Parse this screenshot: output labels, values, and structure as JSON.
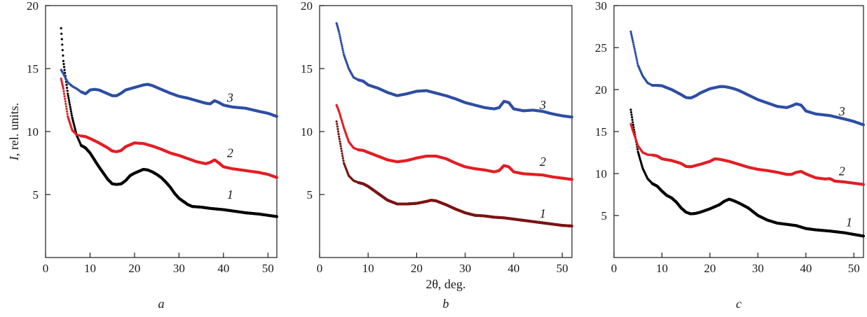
{
  "chart_data": [
    {
      "type": "scatter",
      "panel_label": "a",
      "ylabel": "I, rel. units.",
      "xlabel": "",
      "xlim": [
        0,
        52
      ],
      "ylim": [
        0,
        20
      ],
      "xticks": [
        0,
        10,
        20,
        30,
        40,
        50
      ],
      "yticks": [
        5,
        10,
        15,
        20
      ],
      "grid": false,
      "series": [
        {
          "label": "1",
          "color": "#000000",
          "label_pos": [
            41.5,
            5.0
          ],
          "x": [
            3.5,
            4,
            5,
            6,
            7,
            8,
            9,
            10,
            12,
            14,
            15,
            16,
            17,
            18,
            19,
            20,
            21,
            22,
            23,
            24,
            25,
            26,
            27,
            28,
            29,
            30,
            31,
            32,
            33,
            35,
            37,
            40,
            42,
            45,
            48,
            50,
            52
          ],
          "y": [
            18.2,
            15.6,
            13.0,
            11.1,
            9.7,
            8.9,
            8.7,
            8.3,
            7.2,
            6.2,
            5.85,
            5.8,
            5.85,
            6.1,
            6.5,
            6.7,
            6.85,
            7.0,
            6.95,
            6.8,
            6.6,
            6.35,
            6.0,
            5.6,
            5.1,
            4.7,
            4.45,
            4.2,
            4.05,
            4.0,
            3.9,
            3.8,
            3.7,
            3.55,
            3.45,
            3.35,
            3.25
          ]
        },
        {
          "label": "2",
          "color": "#e31e24",
          "label_pos": [
            41.5,
            8.3
          ],
          "x": [
            3.5,
            4,
            5,
            6,
            7,
            8,
            9,
            10,
            12,
            14,
            15,
            16,
            17,
            18,
            20,
            22,
            24,
            26,
            28,
            30,
            32,
            34,
            36,
            37,
            38,
            39,
            40,
            42,
            45,
            48,
            50,
            52
          ],
          "y": [
            14.2,
            13.4,
            11.2,
            10.1,
            9.75,
            9.65,
            9.6,
            9.45,
            9.1,
            8.7,
            8.45,
            8.4,
            8.5,
            8.8,
            9.1,
            9.05,
            8.85,
            8.6,
            8.3,
            8.1,
            7.85,
            7.6,
            7.45,
            7.55,
            7.75,
            7.5,
            7.2,
            7.05,
            6.9,
            6.75,
            6.6,
            6.35
          ]
        },
        {
          "label": "3",
          "color": "#2e4fa3",
          "label_pos": [
            41.5,
            12.7
          ],
          "x": [
            3.5,
            4,
            5,
            6,
            7,
            8,
            9,
            10,
            11,
            12,
            14,
            15,
            16,
            17,
            18,
            20,
            22,
            23,
            24,
            26,
            28,
            30,
            32,
            34,
            36,
            37,
            38,
            39,
            40,
            42,
            45,
            48,
            50,
            52
          ],
          "y": [
            14.9,
            14.6,
            13.9,
            13.6,
            13.4,
            13.15,
            13.0,
            13.3,
            13.35,
            13.3,
            13.0,
            12.85,
            12.85,
            13.05,
            13.3,
            13.5,
            13.7,
            13.75,
            13.65,
            13.35,
            13.05,
            12.8,
            12.65,
            12.45,
            12.25,
            12.2,
            12.45,
            12.3,
            12.1,
            11.95,
            11.85,
            11.6,
            11.45,
            11.2
          ]
        }
      ]
    },
    {
      "type": "scatter",
      "panel_label": "b",
      "ylabel": "",
      "xlabel": "2θ, deg.",
      "xlim": [
        0,
        52
      ],
      "ylim": [
        0,
        20
      ],
      "xticks": [
        0,
        10,
        20,
        30,
        40,
        50
      ],
      "yticks": [
        5,
        10,
        15,
        20
      ],
      "grid": false,
      "series": [
        {
          "label": "1",
          "color": "#7a1414",
          "label_pos": [
            46.0,
            3.5
          ],
          "x": [
            3.5,
            4,
            5,
            6,
            7,
            8,
            9,
            10,
            12,
            14,
            16,
            18,
            20,
            22,
            23,
            24,
            26,
            28,
            30,
            32,
            34,
            36,
            38,
            40,
            42,
            44,
            46,
            48,
            50,
            52
          ],
          "y": [
            10.8,
            9.6,
            7.5,
            6.5,
            6.1,
            5.95,
            5.85,
            5.65,
            5.1,
            4.55,
            4.25,
            4.25,
            4.3,
            4.45,
            4.55,
            4.5,
            4.2,
            3.85,
            3.55,
            3.35,
            3.3,
            3.2,
            3.15,
            3.05,
            2.95,
            2.85,
            2.75,
            2.65,
            2.55,
            2.5
          ]
        },
        {
          "label": "2",
          "color": "#e31e24",
          "label_pos": [
            46.0,
            7.6
          ],
          "x": [
            3.5,
            4,
            5,
            6,
            7,
            8,
            9,
            10,
            12,
            14,
            16,
            18,
            20,
            22,
            24,
            26,
            28,
            30,
            32,
            34,
            36,
            37,
            38,
            39,
            40,
            42,
            44,
            46,
            48,
            50,
            52
          ],
          "y": [
            12.1,
            11.6,
            10.3,
            9.2,
            8.7,
            8.55,
            8.5,
            8.35,
            8.05,
            7.75,
            7.6,
            7.7,
            7.9,
            8.05,
            8.05,
            7.85,
            7.5,
            7.2,
            7.05,
            6.95,
            6.8,
            6.9,
            7.3,
            7.2,
            6.8,
            6.65,
            6.6,
            6.55,
            6.4,
            6.3,
            6.2
          ]
        },
        {
          "label": "3",
          "color": "#2e4fa3",
          "label_pos": [
            46.0,
            12.1
          ],
          "x": [
            3.5,
            4,
            5,
            6,
            7,
            8,
            9,
            10,
            12,
            14,
            16,
            18,
            20,
            22,
            24,
            26,
            28,
            30,
            32,
            34,
            36,
            37,
            38,
            39,
            40,
            42,
            44,
            46,
            48,
            50,
            52
          ],
          "y": [
            18.6,
            17.9,
            16.1,
            15.0,
            14.3,
            14.1,
            14.0,
            13.7,
            13.45,
            13.1,
            12.85,
            13.0,
            13.2,
            13.25,
            13.05,
            12.85,
            12.6,
            12.3,
            12.1,
            11.9,
            11.8,
            11.9,
            12.4,
            12.3,
            11.8,
            11.65,
            11.7,
            11.6,
            11.4,
            11.25,
            11.15
          ]
        }
      ]
    },
    {
      "type": "scatter",
      "panel_label": "c",
      "ylabel": "",
      "xlabel": "",
      "xlim": [
        0,
        52
      ],
      "ylim": [
        0,
        30
      ],
      "xticks": [
        0,
        10,
        20,
        30,
        40,
        50
      ],
      "yticks": [
        5,
        10,
        15,
        20,
        25,
        30
      ],
      "grid": false,
      "series": [
        {
          "label": "1",
          "color": "#000000",
          "label_pos": [
            49.0,
            4.2
          ],
          "x": [
            3.5,
            4,
            5,
            6,
            7,
            8,
            9,
            10,
            11,
            12,
            13,
            14,
            15,
            16,
            17,
            18,
            20,
            22,
            23,
            24,
            25,
            26,
            28,
            30,
            32,
            34,
            36,
            38,
            40,
            42,
            45,
            48,
            50,
            52
          ],
          "y": [
            17.6,
            15.8,
            12.6,
            10.6,
            9.4,
            8.8,
            8.5,
            7.9,
            7.4,
            7.1,
            6.6,
            5.9,
            5.4,
            5.2,
            5.25,
            5.4,
            5.8,
            6.3,
            6.7,
            6.95,
            6.75,
            6.5,
            5.9,
            5.0,
            4.45,
            4.1,
            3.95,
            3.8,
            3.45,
            3.3,
            3.15,
            2.95,
            2.75,
            2.55
          ]
        },
        {
          "label": "2",
          "color": "#e31e24",
          "label_pos": [
            47.5,
            10.3
          ],
          "x": [
            3.5,
            4,
            5,
            6,
            7,
            8,
            9,
            10,
            12,
            14,
            15,
            16,
            17,
            18,
            20,
            21,
            22,
            24,
            26,
            28,
            30,
            32,
            34,
            36,
            37,
            38,
            39,
            40,
            42,
            44,
            45,
            46,
            48,
            50,
            52
          ],
          "y": [
            15.9,
            15.0,
            13.3,
            12.5,
            12.25,
            12.2,
            12.1,
            11.75,
            11.55,
            11.2,
            10.85,
            10.8,
            10.95,
            11.1,
            11.45,
            11.75,
            11.7,
            11.45,
            11.1,
            10.75,
            10.5,
            10.35,
            10.15,
            9.9,
            9.9,
            10.15,
            10.25,
            9.95,
            9.5,
            9.35,
            9.4,
            9.1,
            9.0,
            8.85,
            8.7
          ]
        },
        {
          "label": "3",
          "color": "#2e4fa3",
          "label_pos": [
            47.5,
            17.4
          ],
          "x": [
            3.5,
            4,
            5,
            6,
            7,
            8,
            9,
            10,
            12,
            14,
            15,
            16,
            17,
            18,
            20,
            22,
            23,
            24,
            25,
            26,
            28,
            30,
            32,
            34,
            36,
            37,
            38,
            39,
            40,
            42,
            45,
            48,
            50,
            52
          ],
          "y": [
            26.9,
            25.6,
            22.9,
            21.6,
            20.8,
            20.5,
            20.5,
            20.45,
            20.0,
            19.4,
            19.05,
            19.0,
            19.25,
            19.6,
            20.1,
            20.35,
            20.35,
            20.25,
            20.1,
            19.9,
            19.35,
            18.8,
            18.4,
            18.0,
            17.85,
            18.05,
            18.3,
            18.15,
            17.45,
            17.1,
            16.9,
            16.5,
            16.2,
            15.8
          ]
        }
      ]
    }
  ]
}
